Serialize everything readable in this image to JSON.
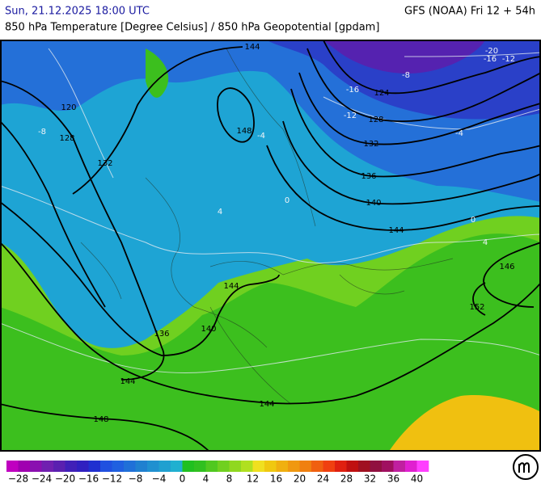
{
  "header": {
    "left": "Sun, 21.12.2025 18:00 UTC",
    "right": "GFS (NOAA) Fri 12 + 54h",
    "subtitle": "850 hPa Temperature [Degree Celsius] / 850 hPa Geopotential [gpdam]"
  },
  "map": {
    "geopotential_labels": [
      "144",
      "120",
      "128",
      "132",
      "148",
      "124",
      "128",
      "132",
      "136",
      "140",
      "144",
      "146",
      "152",
      "144",
      "140",
      "136",
      "144",
      "144",
      "148"
    ],
    "temperature_labels": [
      "-20",
      "-16",
      "-12",
      "-8",
      "-16",
      "-12",
      "-8",
      "-4",
      "0",
      "4",
      "-4",
      "0",
      "4"
    ]
  },
  "legend": {
    "labels": [
      "−28",
      "−24",
      "−20",
      "−16",
      "−12",
      "−8",
      "−4",
      "0",
      "4",
      "8",
      "12",
      "16",
      "20",
      "24",
      "28",
      "32",
      "36",
      "40"
    ],
    "colors": [
      "#c000c0",
      "#a000b0",
      "#8a10b0",
      "#7020b0",
      "#5a20b0",
      "#4020b8",
      "#3020c0",
      "#2030d0",
      "#2050e0",
      "#2060e0",
      "#2070d8",
      "#2080d0",
      "#2090d0",
      "#20a0d0",
      "#20b0d0",
      "#20c020",
      "#30c020",
      "#50c820",
      "#70d020",
      "#90d820",
      "#b0e020",
      "#f0e020",
      "#f0c810",
      "#f0b010",
      "#f09810",
      "#f08010",
      "#f06010",
      "#f04010",
      "#e02010",
      "#c01010",
      "#a01020",
      "#901040",
      "#a01060",
      "#c020a0",
      "#e020d0",
      "#ff40ff"
    ]
  }
}
